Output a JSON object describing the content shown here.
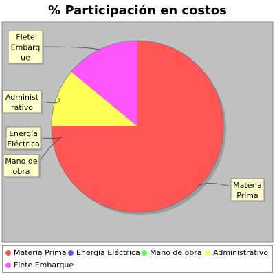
{
  "chart_data": {
    "type": "pie",
    "title": "% Participación en costos",
    "slices": [
      {
        "label": "Materia Prima",
        "label_lines": [
          "Materia",
          "Prima"
        ],
        "value": 75.0,
        "color": "#ff5555"
      },
      {
        "label": "Energía Eléctrica",
        "label_lines": [
          "Energía",
          "Eléctrica"
        ],
        "value": 0.0,
        "color": "#5555ff"
      },
      {
        "label": "Mano de obra",
        "label_lines": [
          "Mano de",
          "obra"
        ],
        "value": 0.0,
        "color": "#55ff55"
      },
      {
        "label": "Administrativo",
        "label_lines": [
          "Administ",
          "rativo"
        ],
        "value": 11.0,
        "color": "#ffff55"
      },
      {
        "label": "Flete Embarque",
        "label_lines": [
          "Flete",
          "Embarq",
          "ue"
        ],
        "value": 14.0,
        "color": "#ff55ff"
      }
    ],
    "legend": {
      "placement": "bottom",
      "rows": [
        [
          "Materia Prima",
          "Energía Eléctrica",
          "Mano de obra",
          "Administrativo"
        ],
        [
          "Flete Embarque"
        ]
      ]
    },
    "colors": {
      "plot_background": "#c0c0c0",
      "label_box": "#ffffcc",
      "label_border": "#8a8a8a"
    }
  }
}
